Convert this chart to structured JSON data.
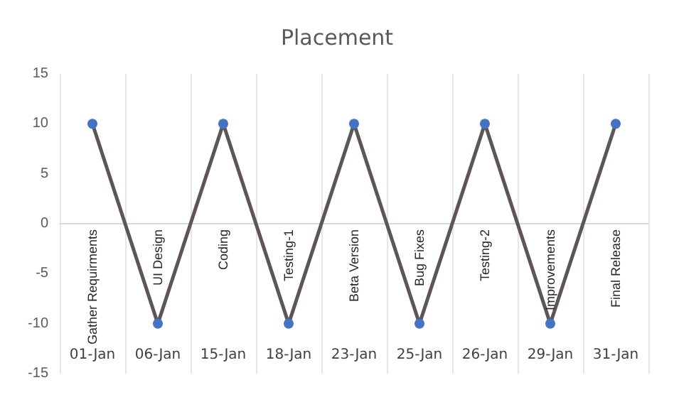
{
  "chart_data": {
    "type": "line",
    "title": "Placement",
    "categories": [
      "01-Jan",
      "06-Jan",
      "15-Jan",
      "18-Jan",
      "23-Jan",
      "25-Jan",
      "26-Jan",
      "29-Jan",
      "31-Jan"
    ],
    "series": [
      {
        "color": "#5e5656",
        "values": [
          10,
          -10,
          10,
          -10,
          10,
          -10,
          10,
          -10,
          10
        ]
      }
    ],
    "ylim": [
      -15,
      15
    ],
    "yticks": [
      -15,
      -10,
      -5,
      0,
      5,
      10,
      15
    ],
    "grid": "x",
    "marker": "circle",
    "line_style": "solid",
    "annotations": [
      "Gather Requirments",
      "UI Design",
      "Coding",
      "Testing-1",
      "Beta Version",
      "Bug Fixes",
      "Testing-2",
      "Improvements",
      "Final Release"
    ]
  }
}
